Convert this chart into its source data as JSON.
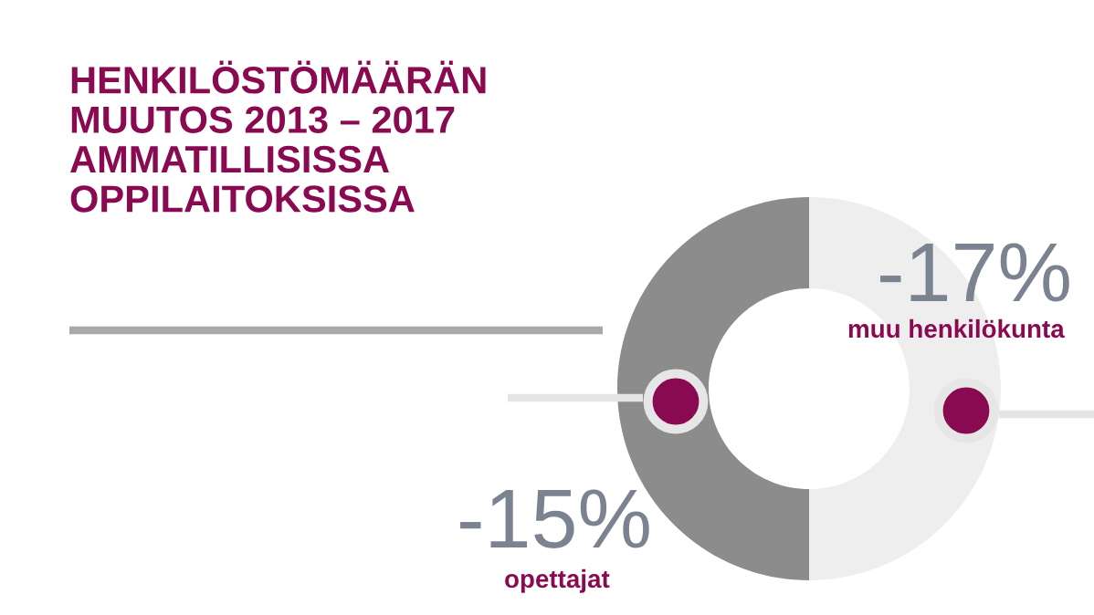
{
  "chart_data": {
    "type": "other",
    "title": "HENKILÖSTÖMÄÄRÄN\nMUUTOS 2013 – 2017\nAMMATILLISISSA\nOPPILAITOKSISSA",
    "categories": [
      "opettajat",
      "muu henkilökunta"
    ],
    "values": [
      -15,
      -17
    ],
    "value_labels": [
      "-15%",
      "-17%"
    ]
  }
}
